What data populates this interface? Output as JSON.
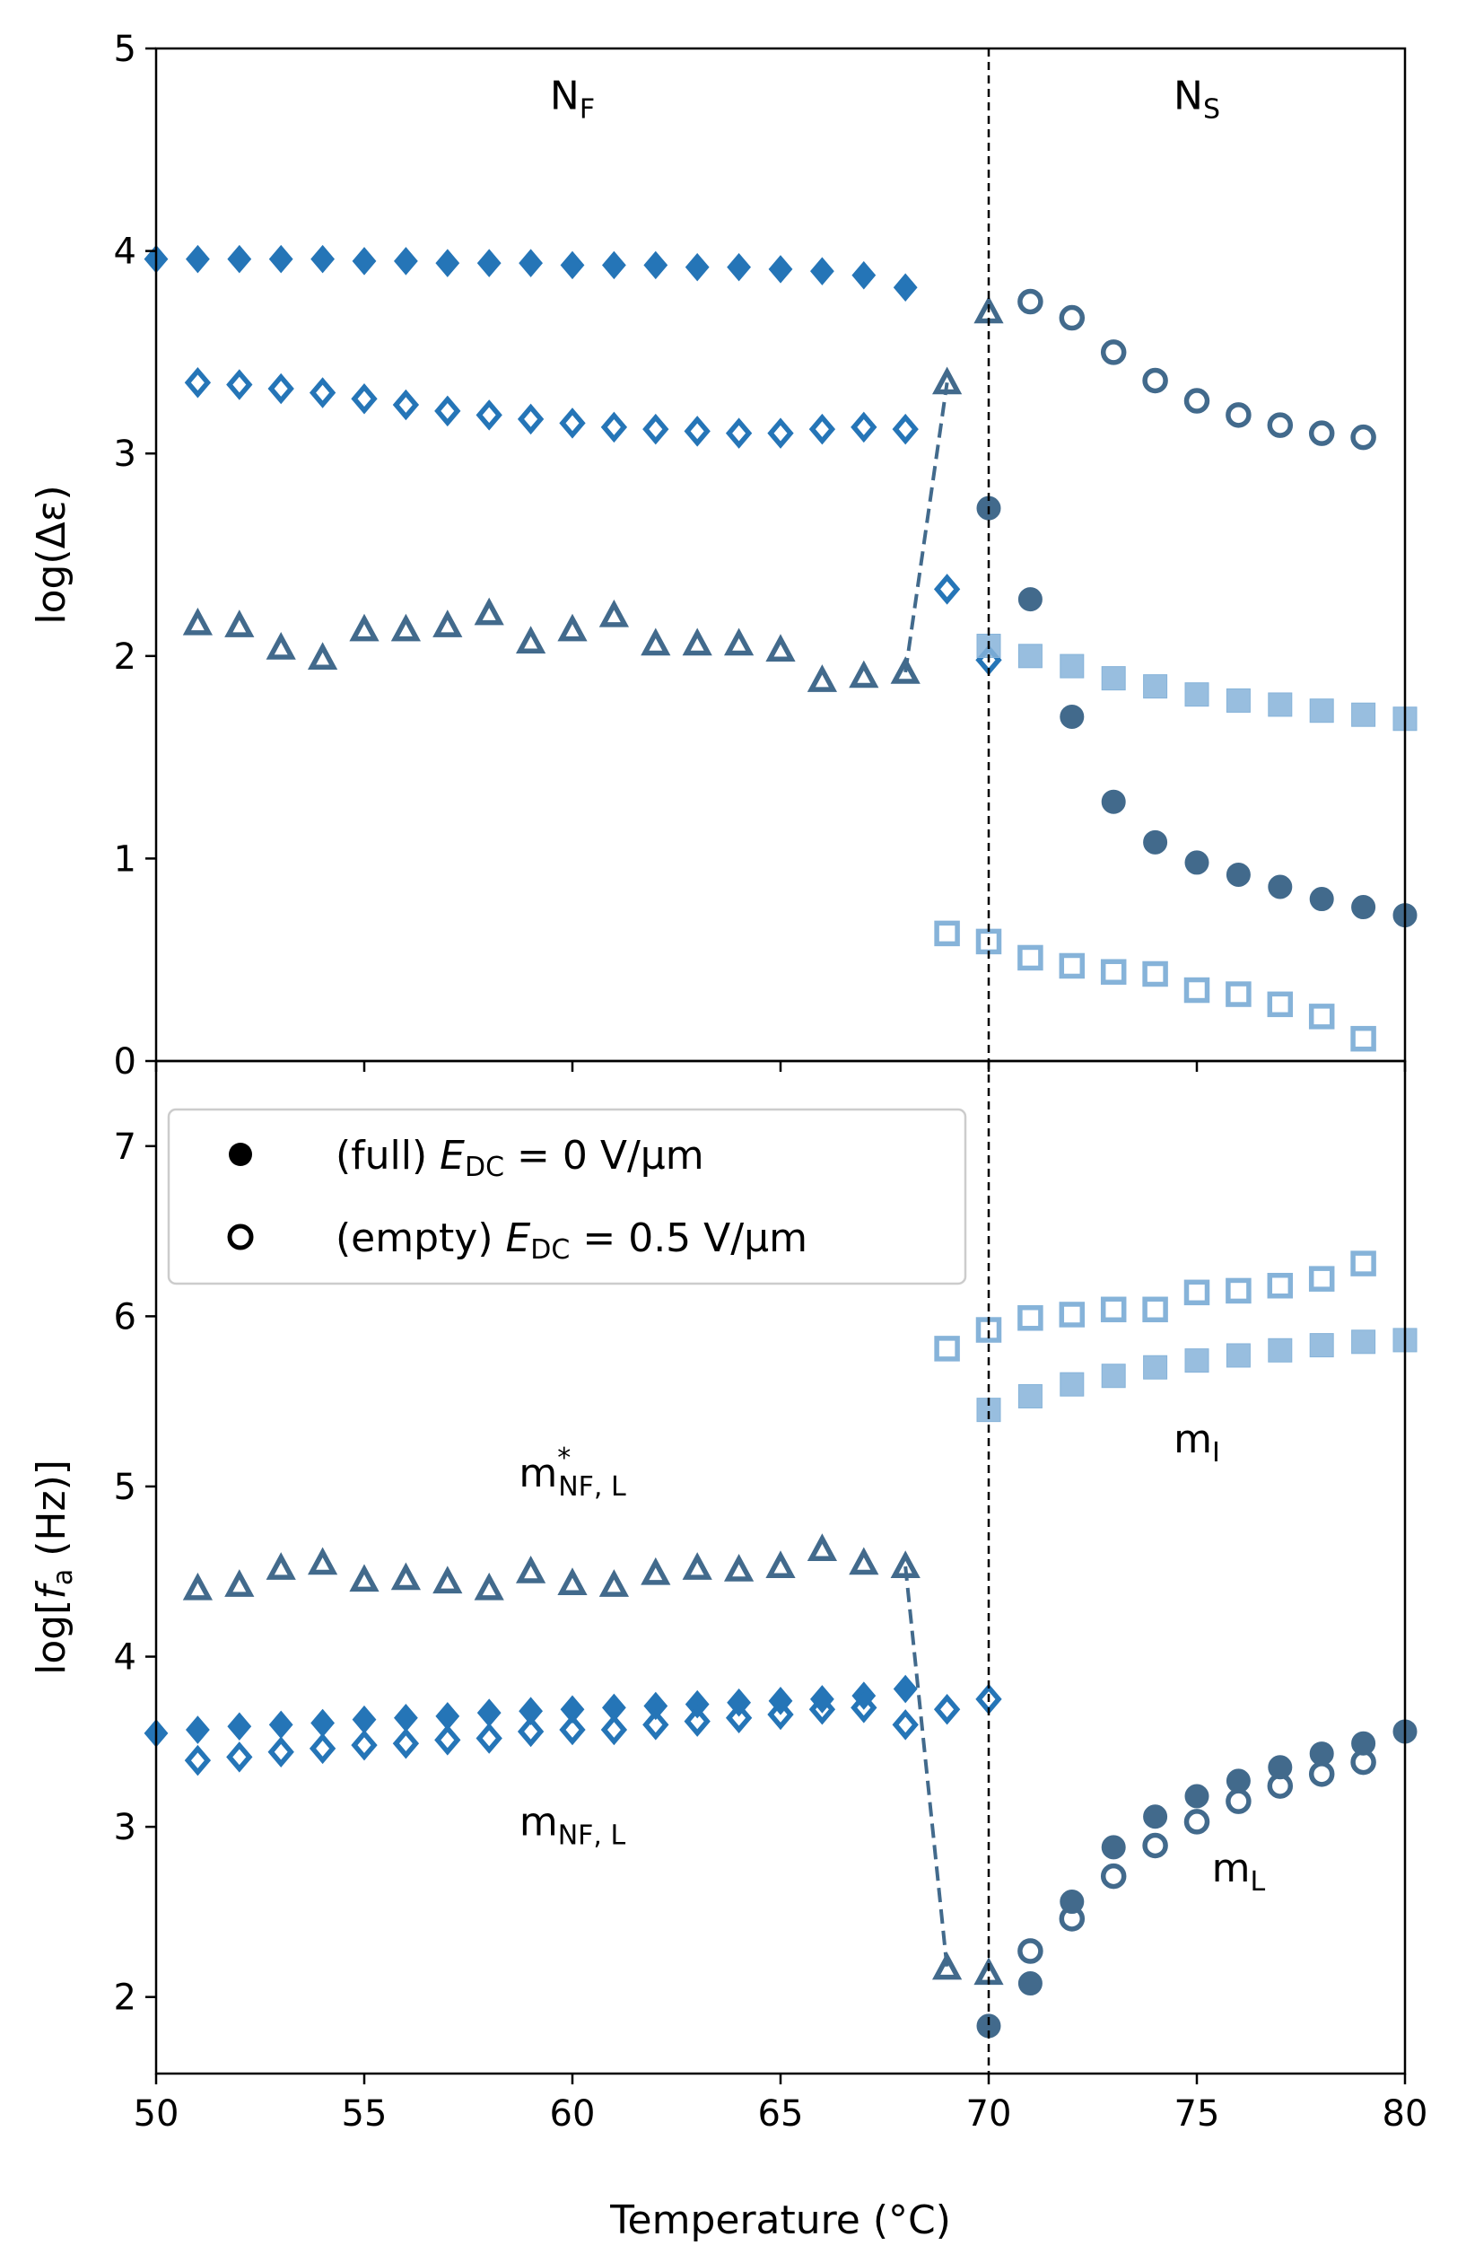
{
  "chart_data": [
    {
      "type": "scatter",
      "panel": "top",
      "ylabel": "log(Δε)",
      "xlim": [
        50,
        80
      ],
      "ylim": [
        0,
        5
      ],
      "yticks": [
        0,
        1,
        2,
        3,
        4,
        5
      ],
      "vline_x": 70,
      "annotations": [
        {
          "main": "N",
          "sub": "F",
          "x": 60,
          "y": 4.7
        },
        {
          "main": "N",
          "sub": "S",
          "x": 75,
          "y": 4.7
        }
      ],
      "colors": {
        "mid": "#2575b7",
        "dark": "#426a8c",
        "light": "#86b3d9"
      },
      "series": [
        {
          "marker": "diamond",
          "fill": true,
          "color": "mid",
          "x": [
            50,
            51,
            52,
            53,
            54,
            55,
            56,
            57,
            58,
            59,
            60,
            61,
            62,
            63,
            64,
            65,
            66,
            67,
            68
          ],
          "y": [
            3.96,
            3.96,
            3.96,
            3.96,
            3.96,
            3.95,
            3.95,
            3.94,
            3.94,
            3.94,
            3.93,
            3.93,
            3.93,
            3.92,
            3.92,
            3.91,
            3.9,
            3.88,
            3.82
          ]
        },
        {
          "marker": "diamond",
          "fill": false,
          "color": "mid",
          "x": [
            51,
            52,
            53,
            54,
            55,
            56,
            57,
            58,
            59,
            60,
            61,
            62,
            63,
            64,
            65,
            66,
            67,
            68,
            69,
            70
          ],
          "y": [
            3.35,
            3.34,
            3.32,
            3.3,
            3.27,
            3.24,
            3.21,
            3.19,
            3.17,
            3.15,
            3.13,
            3.12,
            3.11,
            3.1,
            3.1,
            3.12,
            3.13,
            3.12,
            2.33,
            1.98
          ]
        },
        {
          "marker": "triangle",
          "fill": false,
          "color": "dark",
          "x": [
            51,
            52,
            53,
            54,
            55,
            56,
            57,
            58,
            59,
            60,
            61,
            62,
            63,
            64,
            65,
            66,
            67,
            68,
            69,
            70
          ],
          "y": [
            2.16,
            2.15,
            2.04,
            1.99,
            2.13,
            2.13,
            2.15,
            2.21,
            2.07,
            2.13,
            2.2,
            2.06,
            2.06,
            2.06,
            2.03,
            1.88,
            1.9,
            1.92,
            3.35,
            3.7
          ]
        },
        {
          "marker": "circle",
          "fill": false,
          "color": "dark",
          "x": [
            71,
            72,
            73,
            74,
            75,
            76,
            77,
            78,
            79
          ],
          "y": [
            3.75,
            3.67,
            3.5,
            3.36,
            3.26,
            3.19,
            3.14,
            3.1,
            3.08
          ]
        },
        {
          "marker": "circle",
          "fill": true,
          "color": "dark",
          "x": [
            70,
            71,
            72,
            73,
            74,
            75,
            76,
            77,
            78,
            79,
            80
          ],
          "y": [
            2.73,
            2.28,
            1.7,
            1.28,
            1.08,
            0.98,
            0.92,
            0.86,
            0.8,
            0.76,
            0.72
          ]
        },
        {
          "marker": "square",
          "fill": true,
          "color": "light",
          "x": [
            70,
            71,
            72,
            73,
            74,
            75,
            76,
            77,
            78,
            79,
            80
          ],
          "y": [
            2.05,
            2.0,
            1.95,
            1.89,
            1.85,
            1.81,
            1.78,
            1.76,
            1.73,
            1.71,
            1.69
          ]
        },
        {
          "marker": "square",
          "fill": false,
          "color": "light",
          "x": [
            69,
            70,
            71,
            72,
            73,
            74,
            75,
            76,
            77,
            78,
            79
          ],
          "y": [
            0.63,
            0.59,
            0.51,
            0.47,
            0.44,
            0.43,
            0.35,
            0.33,
            0.28,
            0.22,
            0.11
          ]
        }
      ],
      "dashed_line": {
        "color": "dark",
        "x": [
          68,
          69
        ],
        "y": [
          1.92,
          3.35
        ]
      }
    },
    {
      "type": "scatter",
      "panel": "bottom",
      "ylabel_parts": {
        "pre": "log[",
        "var": "f",
        "sub": "a",
        "post": " (Hz)]"
      },
      "xlabel": "Temperature (°C)",
      "xlim": [
        50,
        80
      ],
      "ylim": [
        1.55,
        7.5
      ],
      "xticks": [
        50,
        55,
        60,
        65,
        70,
        75,
        80
      ],
      "yticks": [
        2,
        3,
        4,
        5,
        6,
        7
      ],
      "vline_x": 70,
      "legend": {
        "placement": "top-left",
        "items": [
          {
            "marker": "circle",
            "fill": true,
            "text_pre": "(full) ",
            "var": "E",
            "sub": "DC",
            "text_post": " = 0 V/μm"
          },
          {
            "marker": "circle",
            "fill": false,
            "text_pre": "(empty) ",
            "var": "E",
            "sub": "DC",
            "text_post": " = 0.5 V/μm"
          }
        ]
      },
      "annotations": [
        {
          "main": "m",
          "sub": "NF, L",
          "sup": "*",
          "x": 60,
          "y": 5.0
        },
        {
          "main": "m",
          "sub": "NF, L",
          "x": 60,
          "y": 2.95
        },
        {
          "main": "m",
          "sub": "I",
          "x": 75,
          "y": 5.2
        },
        {
          "main": "m",
          "sub": "L",
          "x": 76,
          "y": 2.68
        }
      ],
      "colors": {
        "mid": "#2575b7",
        "dark": "#426a8c",
        "light": "#86b3d9"
      },
      "series": [
        {
          "marker": "diamond",
          "fill": true,
          "color": "mid",
          "x": [
            50,
            51,
            52,
            53,
            54,
            55,
            56,
            57,
            58,
            59,
            60,
            61,
            62,
            63,
            64,
            65,
            66,
            67,
            68
          ],
          "y": [
            3.55,
            3.57,
            3.59,
            3.6,
            3.61,
            3.63,
            3.64,
            3.65,
            3.67,
            3.68,
            3.69,
            3.7,
            3.71,
            3.72,
            3.73,
            3.74,
            3.75,
            3.77,
            3.81
          ]
        },
        {
          "marker": "diamond",
          "fill": false,
          "color": "mid",
          "x": [
            51,
            52,
            53,
            54,
            55,
            56,
            57,
            58,
            59,
            60,
            61,
            62,
            63,
            64,
            65,
            66,
            67,
            68,
            69,
            70
          ],
          "y": [
            3.39,
            3.41,
            3.44,
            3.46,
            3.48,
            3.49,
            3.51,
            3.52,
            3.56,
            3.57,
            3.57,
            3.6,
            3.62,
            3.64,
            3.66,
            3.69,
            3.7,
            3.6,
            3.69,
            3.75
          ]
        },
        {
          "marker": "triangle",
          "fill": false,
          "color": "dark",
          "x": [
            51,
            52,
            53,
            54,
            55,
            56,
            57,
            58,
            59,
            60,
            61,
            62,
            63,
            64,
            65,
            66,
            67,
            68,
            69,
            70
          ],
          "y": [
            4.4,
            4.42,
            4.52,
            4.55,
            4.45,
            4.46,
            4.44,
            4.4,
            4.5,
            4.43,
            4.42,
            4.49,
            4.52,
            4.51,
            4.53,
            4.63,
            4.55,
            4.53,
            2.17,
            2.14
          ]
        },
        {
          "marker": "circle",
          "fill": true,
          "color": "dark",
          "x": [
            70,
            71,
            72,
            73,
            74,
            75,
            76,
            77,
            78,
            79,
            80
          ],
          "y": [
            1.83,
            2.08,
            2.56,
            2.88,
            3.06,
            3.18,
            3.27,
            3.35,
            3.43,
            3.49,
            3.56
          ]
        },
        {
          "marker": "circle",
          "fill": false,
          "color": "dark",
          "x": [
            71,
            72,
            73,
            74,
            75,
            76,
            77,
            78,
            79
          ],
          "y": [
            2.27,
            2.46,
            2.71,
            2.89,
            3.03,
            3.15,
            3.24,
            3.31,
            3.38
          ]
        },
        {
          "marker": "square",
          "fill": false,
          "color": "light",
          "x": [
            69,
            70,
            71,
            72,
            73,
            74,
            75,
            76,
            77,
            78,
            79
          ],
          "y": [
            5.81,
            5.92,
            5.99,
            6.01,
            6.04,
            6.04,
            6.14,
            6.15,
            6.18,
            6.22,
            6.31
          ]
        },
        {
          "marker": "square",
          "fill": true,
          "color": "light",
          "x": [
            70,
            71,
            72,
            73,
            74,
            75,
            76,
            77,
            78,
            79,
            80
          ],
          "y": [
            5.45,
            5.53,
            5.6,
            5.65,
            5.7,
            5.74,
            5.77,
            5.8,
            5.83,
            5.85,
            5.86
          ]
        }
      ],
      "dashed_line": {
        "color": "dark",
        "x": [
          68,
          69
        ],
        "y": [
          4.53,
          2.17
        ]
      }
    }
  ]
}
